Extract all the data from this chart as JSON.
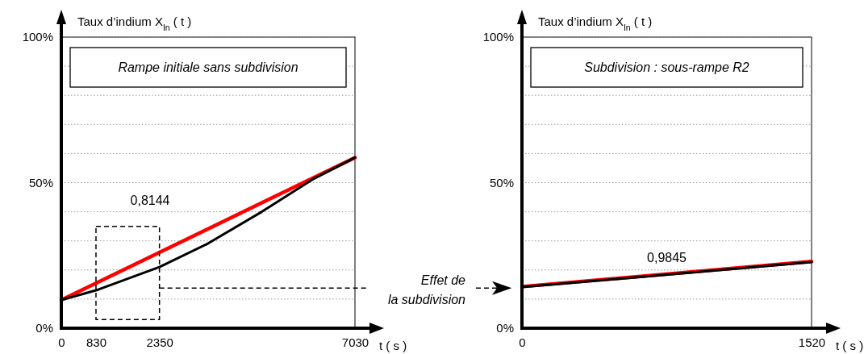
{
  "chart_data": [
    {
      "type": "line",
      "title": "Rampe initiale sans subdivision",
      "xlabel": "t ( s )",
      "ylabel": "Taux d’indium X$_{In}$ ( t )",
      "xlim": [
        0,
        7030
      ],
      "xticks": [
        0,
        830,
        2350,
        7030
      ],
      "ylim": [
        0,
        100
      ],
      "yticks": [
        {
          "value": 0,
          "label": "0%"
        },
        {
          "value": 10,
          "label": null
        },
        {
          "value": 20,
          "label": null
        },
        {
          "value": 30,
          "label": null
        },
        {
          "value": 40,
          "label": null
        },
        {
          "value": 50,
          "label": "50%"
        },
        {
          "value": 60,
          "label": null
        },
        {
          "value": 70,
          "label": null
        },
        {
          "value": 80,
          "label": null
        },
        {
          "value": 90,
          "label": null
        },
        {
          "value": 100,
          "label": "100%"
        }
      ],
      "grid": "y",
      "marker": "none",
      "line_style": "solid",
      "series": [
        {
          "color": "#ff0000",
          "x": [
            0,
            7030
          ],
          "values": [
            9.7,
            58.6
          ]
        },
        {
          "color": "#000000",
          "x": [
            0,
            830,
            2350,
            3500,
            4800,
            6000,
            7030
          ],
          "values": [
            9.7,
            13,
            21,
            29,
            40,
            51,
            58.6
          ]
        }
      ],
      "annotations": [
        "0,8144",
        "Effet de la subdivision"
      ]
    },
    {
      "type": "line",
      "title": "Subdivision : sous-rampe R2",
      "xlabel": "t ( s )",
      "ylabel": "Taux d’indium X$_{In}$ ( t )",
      "xlim": [
        0,
        1520
      ],
      "xticks": [
        0,
        1520
      ],
      "ylim": [
        0,
        100
      ],
      "yticks": [
        {
          "value": 0,
          "label": "0%"
        },
        {
          "value": 10,
          "label": null
        },
        {
          "value": 20,
          "label": null
        },
        {
          "value": 30,
          "label": null
        },
        {
          "value": 40,
          "label": null
        },
        {
          "value": 50,
          "label": "50%"
        },
        {
          "value": 60,
          "label": null
        },
        {
          "value": 70,
          "label": null
        },
        {
          "value": 80,
          "label": null
        },
        {
          "value": 90,
          "label": null
        },
        {
          "value": 100,
          "label": "100%"
        }
      ],
      "grid": "y",
      "marker": "none",
      "line_style": "solid",
      "series": [
        {
          "color": "#ff0000",
          "x": [
            0,
            1520
          ],
          "values": [
            14.3,
            22.9
          ]
        },
        {
          "color": "#000000",
          "x": [
            0,
            1520
          ],
          "values": [
            14.1,
            22.7
          ]
        }
      ],
      "annotations": [
        "0,9845"
      ]
    }
  ]
}
